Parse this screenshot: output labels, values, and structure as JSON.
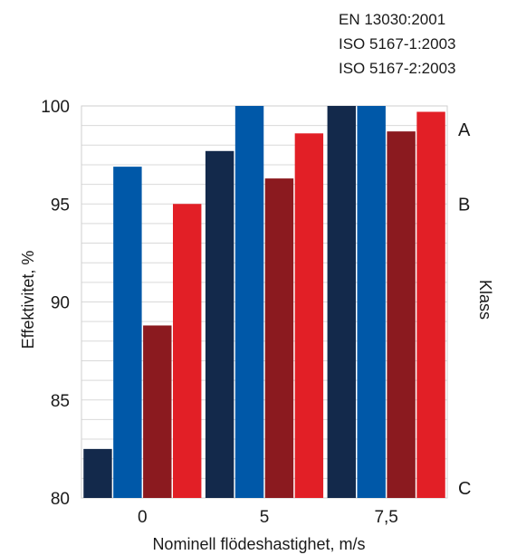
{
  "standards": [
    "EN 13030:2001",
    "ISO 5167-1:2003",
    "ISO 5167-2:2003"
  ],
  "chart_data": {
    "type": "bar",
    "title": "",
    "xlabel": "Nominell flödeshastighet, m/s",
    "ylabel": "Effektivitet, %",
    "right_axis_label": "Klass",
    "categories": [
      "0",
      "5",
      "7,5"
    ],
    "series": [
      {
        "color": "#13294b",
        "values": [
          82.5,
          97.7,
          100
        ]
      },
      {
        "color": "#0058a8",
        "values": [
          96.9,
          100,
          100
        ]
      },
      {
        "color": "#8b1a1f",
        "values": [
          88.8,
          96.3,
          98.7
        ]
      },
      {
        "color": "#e21f26",
        "values": [
          95.0,
          98.6,
          99.7
        ]
      }
    ],
    "ylim": [
      80,
      100
    ],
    "yticks": [
      80,
      85,
      90,
      95,
      100
    ],
    "class_levels": [
      {
        "label": "A",
        "value": 98.8
      },
      {
        "label": "B",
        "value": 95.0
      },
      {
        "label": "C",
        "value": 80.5
      }
    ],
    "grid": true,
    "grid_minor_step": 1
  }
}
